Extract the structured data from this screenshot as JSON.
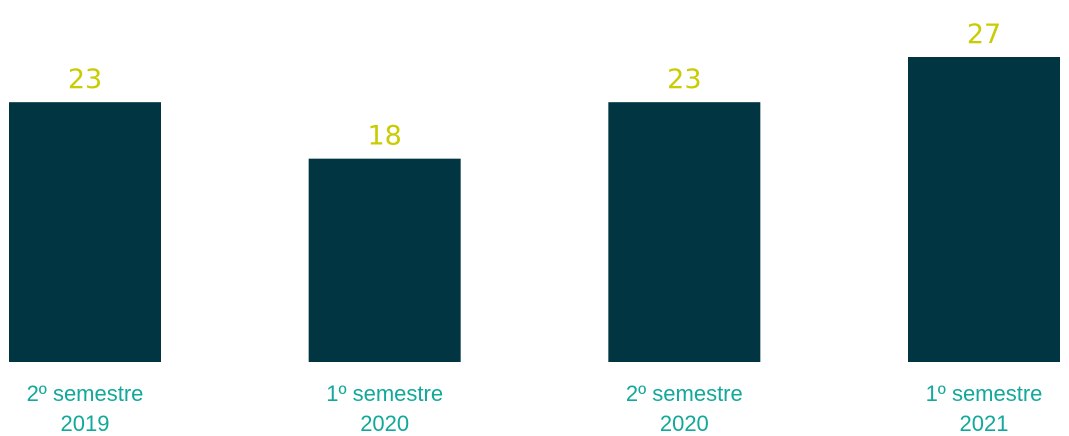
{
  "colors": {
    "bar": "#003541",
    "value_label": "#c8cc00",
    "category_label": "#12a89a"
  },
  "chart_data": {
    "type": "bar",
    "categories": [
      [
        "2º semestre",
        "2019"
      ],
      [
        "1º semestre",
        "2020"
      ],
      [
        "2º semestre",
        "2020"
      ],
      [
        "1º semestre",
        "2021"
      ]
    ],
    "values": [
      23,
      18,
      23,
      27
    ],
    "data_labels": [
      "23",
      "18",
      "23",
      "27"
    ],
    "title": "",
    "xlabel": "",
    "ylabel": "",
    "ylim": [
      0,
      27
    ],
    "grid": false,
    "legend": "none"
  }
}
